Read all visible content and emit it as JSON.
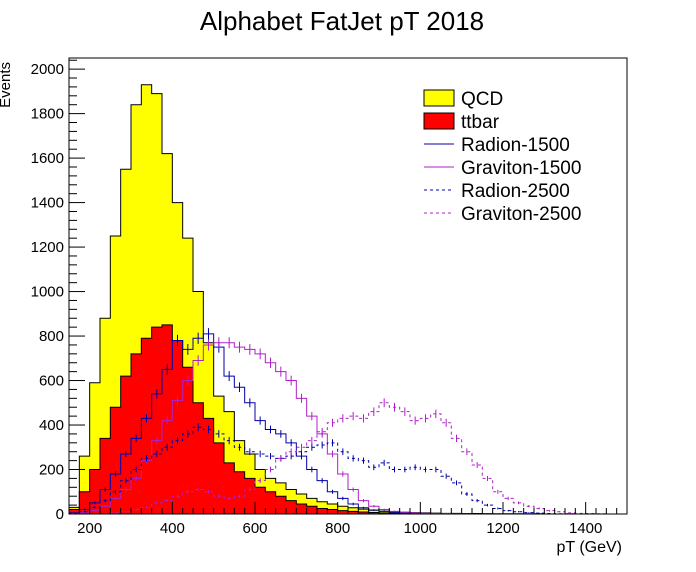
{
  "colors": {
    "qcd": "#ffff00",
    "ttbar": "#ff0000",
    "radion": "#0000aa",
    "graviton": "#b020c8",
    "axis": "#000000"
  },
  "chart_data": {
    "type": "histogram",
    "title": "Alphabet FatJet pT 2018",
    "xlabel": "pT (GeV)",
    "ylabel": "Events",
    "xlim": [
      150,
      1500
    ],
    "ylim": [
      0,
      2050
    ],
    "bin_width": 25,
    "bin_edges_start": 150,
    "x_ticks": [
      "200",
      "400",
      "600",
      "800",
      "1000",
      "1200",
      "1400"
    ],
    "y_ticks": [
      "0",
      "200",
      "400",
      "600",
      "800",
      "1000",
      "1200",
      "1400",
      "1600",
      "1800",
      "2000"
    ],
    "legend_position": "top-right",
    "series": [
      {
        "name": "QCD",
        "style": "filled",
        "values": [
          30,
          260,
          590,
          880,
          1250,
          1550,
          1840,
          1930,
          1890,
          1620,
          1400,
          1240,
          1000,
          770,
          530,
          460,
          330,
          270,
          200,
          160,
          140,
          110,
          90,
          70,
          55,
          45,
          35,
          28,
          22,
          17,
          13,
          10,
          8,
          6,
          5,
          4,
          3,
          3,
          2,
          2,
          1,
          1,
          1,
          1,
          1,
          1,
          0,
          0,
          0,
          0,
          0,
          0,
          0,
          0
        ]
      },
      {
        "name": "ttbar",
        "style": "filled",
        "values": [
          20,
          100,
          200,
          340,
          480,
          620,
          720,
          790,
          840,
          850,
          780,
          660,
          500,
          430,
          320,
          230,
          190,
          160,
          120,
          100,
          80,
          60,
          45,
          35,
          25,
          20,
          15,
          12,
          9,
          7,
          5,
          4,
          3,
          2,
          2,
          1,
          1,
          1,
          1,
          1,
          0,
          0,
          0,
          0,
          0,
          0,
          0,
          0,
          0,
          0,
          0,
          0,
          0,
          0
        ]
      },
      {
        "name": "Radion-1500",
        "style": "solid",
        "values": [
          5,
          20,
          50,
          110,
          180,
          270,
          340,
          430,
          540,
          650,
          780,
          740,
          790,
          810,
          750,
          620,
          570,
          500,
          420,
          380,
          360,
          320,
          260,
          200,
          150,
          100,
          70,
          45,
          28,
          18,
          12,
          8,
          5,
          4,
          3,
          2,
          2,
          1,
          1,
          1,
          1,
          0,
          0,
          0,
          0,
          0,
          0,
          0,
          0,
          0,
          0,
          0,
          0,
          0
        ]
      },
      {
        "name": "Graviton-1500",
        "style": "solid",
        "values": [
          2,
          5,
          15,
          35,
          70,
          110,
          160,
          240,
          330,
          420,
          510,
          600,
          690,
          760,
          770,
          770,
          750,
          740,
          720,
          680,
          640,
          600,
          520,
          440,
          360,
          270,
          180,
          110,
          60,
          35,
          20,
          12,
          8,
          5,
          3,
          2,
          2,
          1,
          1,
          0,
          0,
          0,
          0,
          0,
          0,
          0,
          0,
          0,
          0,
          0,
          0,
          0,
          0,
          0
        ]
      },
      {
        "name": "Radion-2500",
        "style": "dashed",
        "values": [
          2,
          10,
          30,
          60,
          100,
          150,
          200,
          250,
          270,
          300,
          330,
          360,
          390,
          380,
          360,
          330,
          300,
          280,
          270,
          260,
          250,
          260,
          280,
          300,
          310,
          320,
          280,
          250,
          240,
          210,
          230,
          200,
          200,
          210,
          200,
          200,
          170,
          140,
          90,
          60,
          40,
          25,
          15,
          10,
          6,
          4,
          2,
          1,
          1,
          0,
          0,
          0,
          0,
          0
        ]
      },
      {
        "name": "Graviton-2500",
        "style": "dashed",
        "values": [
          0,
          0,
          0,
          2,
          5,
          10,
          20,
          30,
          50,
          60,
          80,
          100,
          110,
          100,
          80,
          70,
          80,
          110,
          150,
          200,
          250,
          280,
          300,
          330,
          370,
          410,
          430,
          440,
          430,
          460,
          500,
          480,
          460,
          420,
          430,
          450,
          410,
          340,
          280,
          220,
          160,
          100,
          70,
          50,
          35,
          25,
          15,
          10,
          5,
          3,
          2,
          1,
          0,
          0
        ]
      }
    ]
  }
}
